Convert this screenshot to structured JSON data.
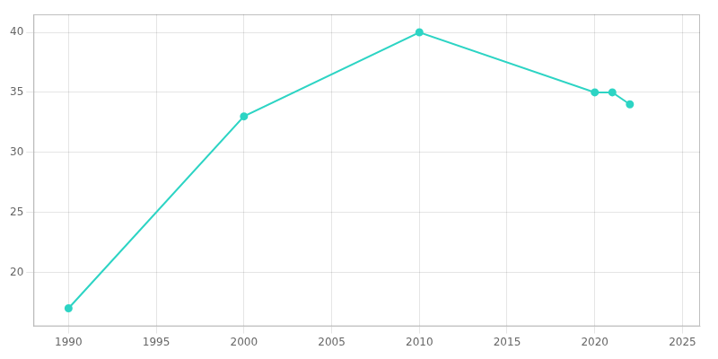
{
  "chart_data": {
    "type": "line",
    "x": [
      1990,
      2000,
      2010,
      2020,
      2021,
      2022
    ],
    "values": [
      17,
      33,
      40,
      35,
      35,
      34
    ],
    "color": "#2dd4c4",
    "marker": "circle",
    "xlim": [
      1988,
      2026
    ],
    "ylim": [
      15.5,
      41.5
    ],
    "xticks": [
      1990,
      1995,
      2000,
      2005,
      2010,
      2015,
      2020,
      2025
    ],
    "yticks": [
      20,
      25,
      30,
      35,
      40
    ],
    "grid": true
  }
}
